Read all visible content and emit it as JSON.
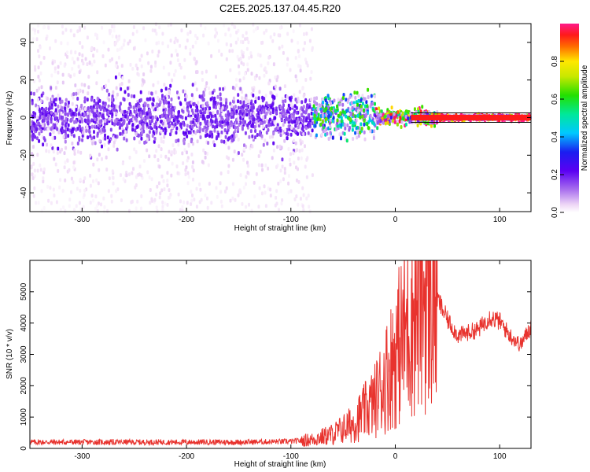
{
  "title": "C2E5.2025.137.04.45.R20",
  "chart_data": [
    {
      "type": "heatmap",
      "xlabel": "Height of straight line (km)",
      "ylabel": "Frequency (Hz)",
      "xlim": [
        -350,
        130
      ],
      "ylim": [
        -50,
        50
      ],
      "xticks": [
        -300,
        -200,
        -100,
        0,
        100
      ],
      "yticks": [
        -40,
        -20,
        0,
        20,
        40
      ],
      "colorbar": {
        "label": "Normalized spectral amplitude",
        "range": [
          0,
          1
        ],
        "ticks": [
          "0.0",
          "0.2",
          "0.4",
          "0.6",
          "0.8"
        ],
        "colormap": "rainbow (white → violet → blue → cyan → green → yellow → red → pink)"
      },
      "description_points": [
        {
          "x_range": [
            -350,
            -80
          ],
          "freq_spread_hz": 50,
          "core_band_hz": [
            -8,
            8
          ],
          "amplitude": 0.15
        },
        {
          "x_range": [
            -80,
            -20
          ],
          "freq_spread_hz": 12,
          "core_band_hz": [
            -5,
            8
          ],
          "amplitude": 0.45
        },
        {
          "x_range": [
            -20,
            40
          ],
          "freq_spread_hz": 3,
          "core_band_hz": [
            -2,
            3
          ],
          "amplitude": 0.7
        },
        {
          "x_range": [
            40,
            130
          ],
          "freq_spread_hz": 1,
          "core_band_hz": [
            -1,
            1
          ],
          "amplitude": 0.95
        }
      ]
    },
    {
      "type": "line",
      "xlabel": "Height of straight line (km)",
      "ylabel": "SNR (10 * v/v)",
      "xlim": [
        -350,
        130
      ],
      "ylim": [
        0,
        6000
      ],
      "xticks": [
        -300,
        -200,
        -100,
        0,
        100
      ],
      "yticks": [
        0,
        1000,
        2000,
        3000,
        4000,
        5000
      ],
      "series": [
        {
          "color": "#e8332e",
          "x": [
            -350,
            -300,
            -250,
            -200,
            -150,
            -100,
            -80,
            -60,
            -40,
            -20,
            -10,
            0,
            10,
            20,
            30,
            40,
            50,
            60,
            70,
            80,
            90,
            100,
            110,
            120,
            130
          ],
          "y": [
            200,
            200,
            200,
            200,
            200,
            220,
            280,
            450,
            800,
            1500,
            2200,
            3000,
            3800,
            4600,
            5000,
            4800,
            4100,
            3600,
            3700,
            3800,
            4200,
            4050,
            3600,
            3300,
            3900
          ]
        }
      ]
    }
  ]
}
